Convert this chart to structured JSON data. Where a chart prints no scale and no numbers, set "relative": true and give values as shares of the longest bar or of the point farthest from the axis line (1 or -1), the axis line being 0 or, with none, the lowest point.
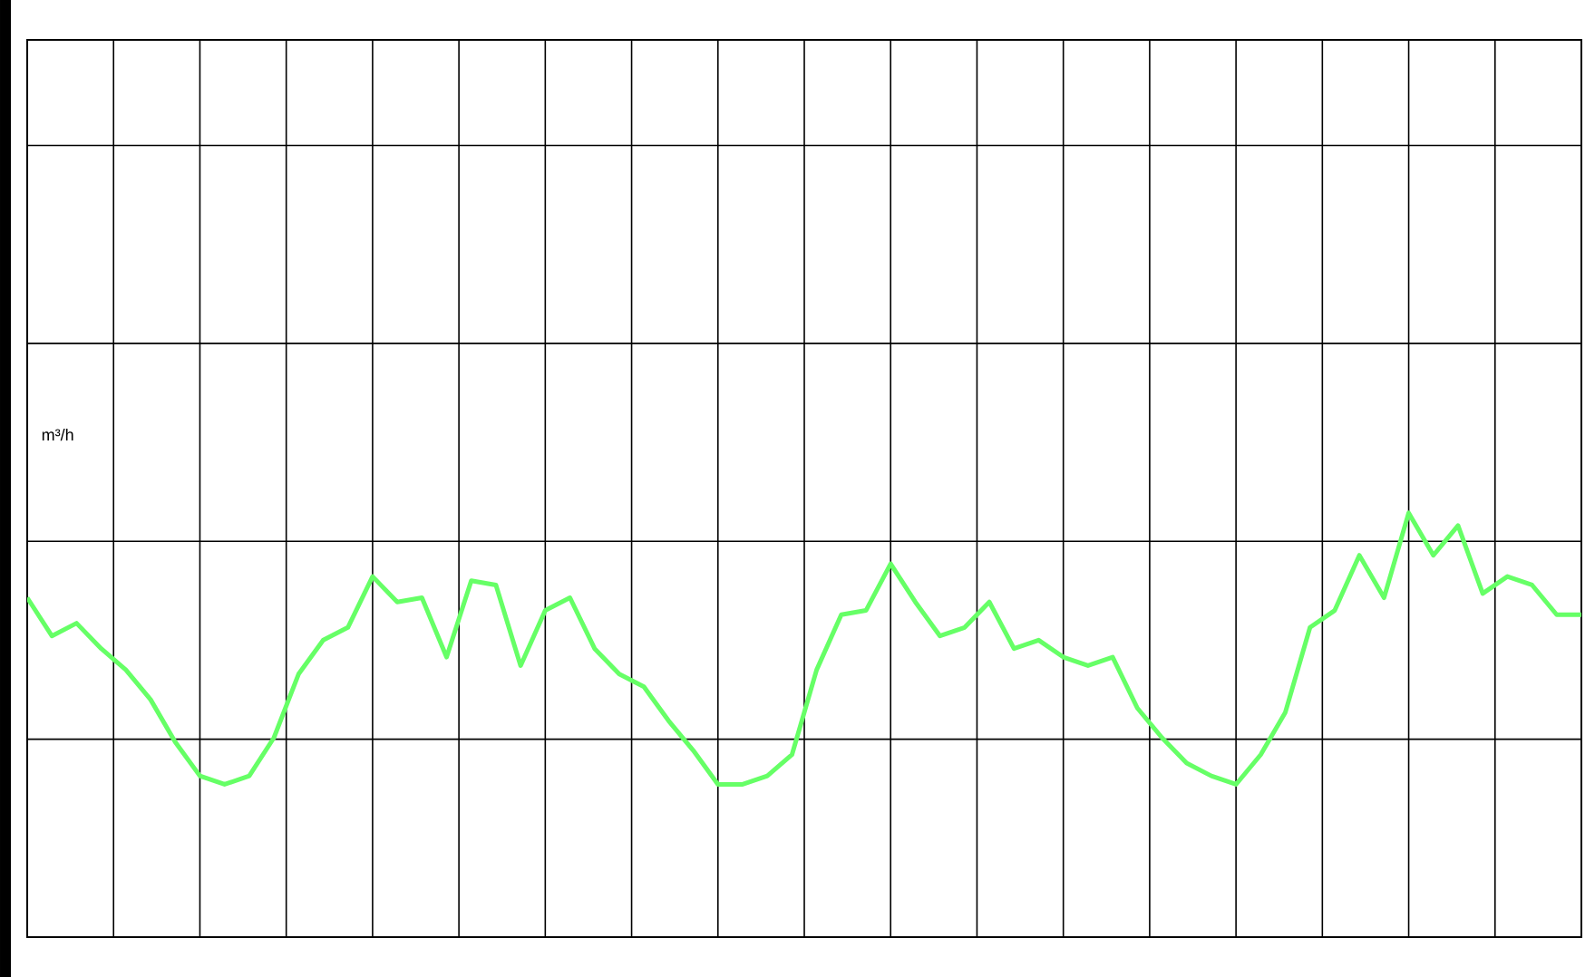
{
  "chart_data": {
    "type": "line",
    "relative": true,
    "ylabel": "m³/h",
    "grid": true,
    "categories": [
      null,
      null,
      null,
      null,
      null,
      null,
      null,
      null,
      null,
      null,
      null,
      null,
      null,
      null,
      null,
      null,
      null,
      null,
      null,
      null,
      null,
      null,
      null,
      null,
      null,
      null,
      null,
      null,
      null,
      null,
      null,
      null,
      null,
      null,
      null,
      null,
      null,
      null,
      null,
      null,
      null,
      null,
      null,
      null,
      null,
      null,
      null,
      null,
      null,
      null,
      null,
      null,
      null,
      null,
      null,
      null,
      null,
      null,
      null,
      null,
      null,
      null,
      null,
      null
    ],
    "series": [
      {
        "color": "#66ff66",
        "values": [
          0.8,
          0.71,
          0.74,
          0.68,
          0.63,
          0.56,
          0.46,
          0.38,
          0.36,
          0.38,
          0.47,
          0.62,
          0.7,
          0.73,
          0.85,
          0.79,
          0.8,
          0.66,
          0.84,
          0.83,
          0.64,
          0.77,
          0.8,
          0.68,
          0.62,
          0.59,
          0.51,
          0.44,
          0.36,
          0.36,
          0.38,
          0.43,
          0.63,
          0.76,
          0.77,
          0.88,
          0.79,
          0.71,
          0.73,
          0.79,
          0.68,
          0.7,
          0.66,
          0.64,
          0.66,
          0.54,
          0.47,
          0.41,
          0.38,
          0.36,
          0.43,
          0.53,
          0.73,
          0.77,
          0.9,
          0.8,
          1.0,
          0.9,
          0.97,
          0.81,
          0.85,
          0.83,
          0.76,
          0.76
        ]
      }
    ]
  }
}
